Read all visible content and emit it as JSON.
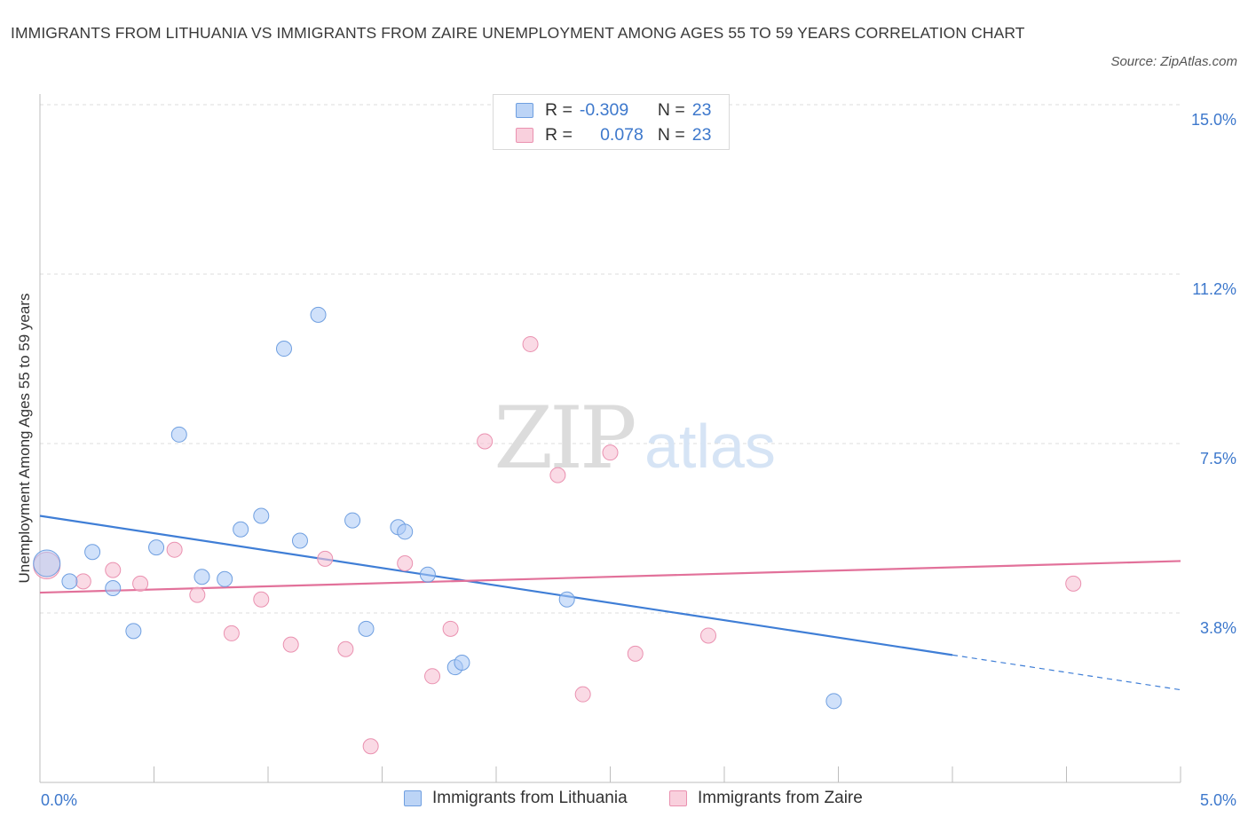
{
  "title": "IMMIGRANTS FROM LITHUANIA VS IMMIGRANTS FROM ZAIRE UNEMPLOYMENT AMONG AGES 55 TO 59 YEARS CORRELATION CHART",
  "source": "Source: ZipAtlas.com",
  "watermark": {
    "zip": "ZIP",
    "atlas": "atlas"
  },
  "legend_top": [
    {
      "r_label": "R =",
      "r_value": "-0.309",
      "n_label": "N =",
      "n_value": "23"
    },
    {
      "r_label": "R =",
      "r_value": "0.078",
      "n_label": "N =",
      "n_value": "23"
    }
  ],
  "colors": {
    "lithuania_fill": "#a9c9f5",
    "lithuania_stroke": "#6f9fe0",
    "lithuania_line": "#3f7ed6",
    "zaire_fill": "#f7c2d3",
    "zaire_stroke": "#ea91b0",
    "zaire_line": "#e2719a",
    "axis_label": "#3d78cc"
  },
  "chart_data": {
    "type": "scatter",
    "title": "IMMIGRANTS FROM LITHUANIA VS IMMIGRANTS FROM ZAIRE UNEMPLOYMENT AMONG AGES 55 TO 59 YEARS CORRELATION CHART",
    "xlabel": "",
    "ylabel": "Unemployment Among Ages 55 to 59 years",
    "xlim": [
      0,
      5
    ],
    "ylim": [
      0,
      15
    ],
    "x_tick_labels": [
      "0.0%",
      "5.0%"
    ],
    "y_ticks": [
      3.75,
      7.5,
      11.25,
      15
    ],
    "y_tick_labels": [
      "3.8%",
      "7.5%",
      "11.2%",
      "15.0%"
    ],
    "grid": "horizontal dashed",
    "legend_position": "top-center and bottom",
    "series": [
      {
        "name": "Immigrants from Lithuania",
        "r": -0.309,
        "n": 23,
        "points": [
          [
            0.03,
            4.85
          ],
          [
            0.13,
            4.45
          ],
          [
            0.23,
            5.1
          ],
          [
            0.32,
            4.3
          ],
          [
            0.41,
            3.35
          ],
          [
            0.51,
            5.2
          ],
          [
            0.61,
            7.7
          ],
          [
            0.71,
            4.55
          ],
          [
            0.81,
            4.5
          ],
          [
            0.88,
            5.6
          ],
          [
            0.97,
            5.9
          ],
          [
            1.07,
            9.6
          ],
          [
            1.14,
            5.35
          ],
          [
            1.22,
            10.35
          ],
          [
            1.37,
            5.8
          ],
          [
            1.43,
            3.4
          ],
          [
            1.57,
            5.65
          ],
          [
            1.6,
            5.55
          ],
          [
            1.7,
            4.6
          ],
          [
            1.82,
            2.55
          ],
          [
            1.85,
            2.65
          ],
          [
            2.31,
            4.05
          ],
          [
            3.48,
            1.8
          ]
        ],
        "trend": {
          "x_start": 0,
          "y_start": 5.9,
          "x_solid_end": 4.0,
          "x_end": 5,
          "y_end": 2.05
        }
      },
      {
        "name": "Immigrants from Zaire",
        "r": 0.078,
        "n": 23,
        "points": [
          [
            0.03,
            4.8
          ],
          [
            0.19,
            4.45
          ],
          [
            0.32,
            4.7
          ],
          [
            0.44,
            4.4
          ],
          [
            0.59,
            5.15
          ],
          [
            0.69,
            4.15
          ],
          [
            0.84,
            3.3
          ],
          [
            0.97,
            4.05
          ],
          [
            1.1,
            3.05
          ],
          [
            1.25,
            4.95
          ],
          [
            1.34,
            2.95
          ],
          [
            1.6,
            4.85
          ],
          [
            1.72,
            2.35
          ],
          [
            1.8,
            3.4
          ],
          [
            1.95,
            7.55
          ],
          [
            2.15,
            9.7
          ],
          [
            2.27,
            6.8
          ],
          [
            2.38,
            1.95
          ],
          [
            2.5,
            7.3
          ],
          [
            2.61,
            2.85
          ],
          [
            2.93,
            3.25
          ],
          [
            1.45,
            0.8
          ],
          [
            4.53,
            4.4
          ]
        ],
        "trend": {
          "x_start": 0,
          "y_start": 4.2,
          "x_end": 5,
          "y_end": 4.9
        }
      }
    ]
  },
  "bottom_legend": [
    {
      "label": "Immigrants from Lithuania"
    },
    {
      "label": "Immigrants from Zaire"
    }
  ]
}
